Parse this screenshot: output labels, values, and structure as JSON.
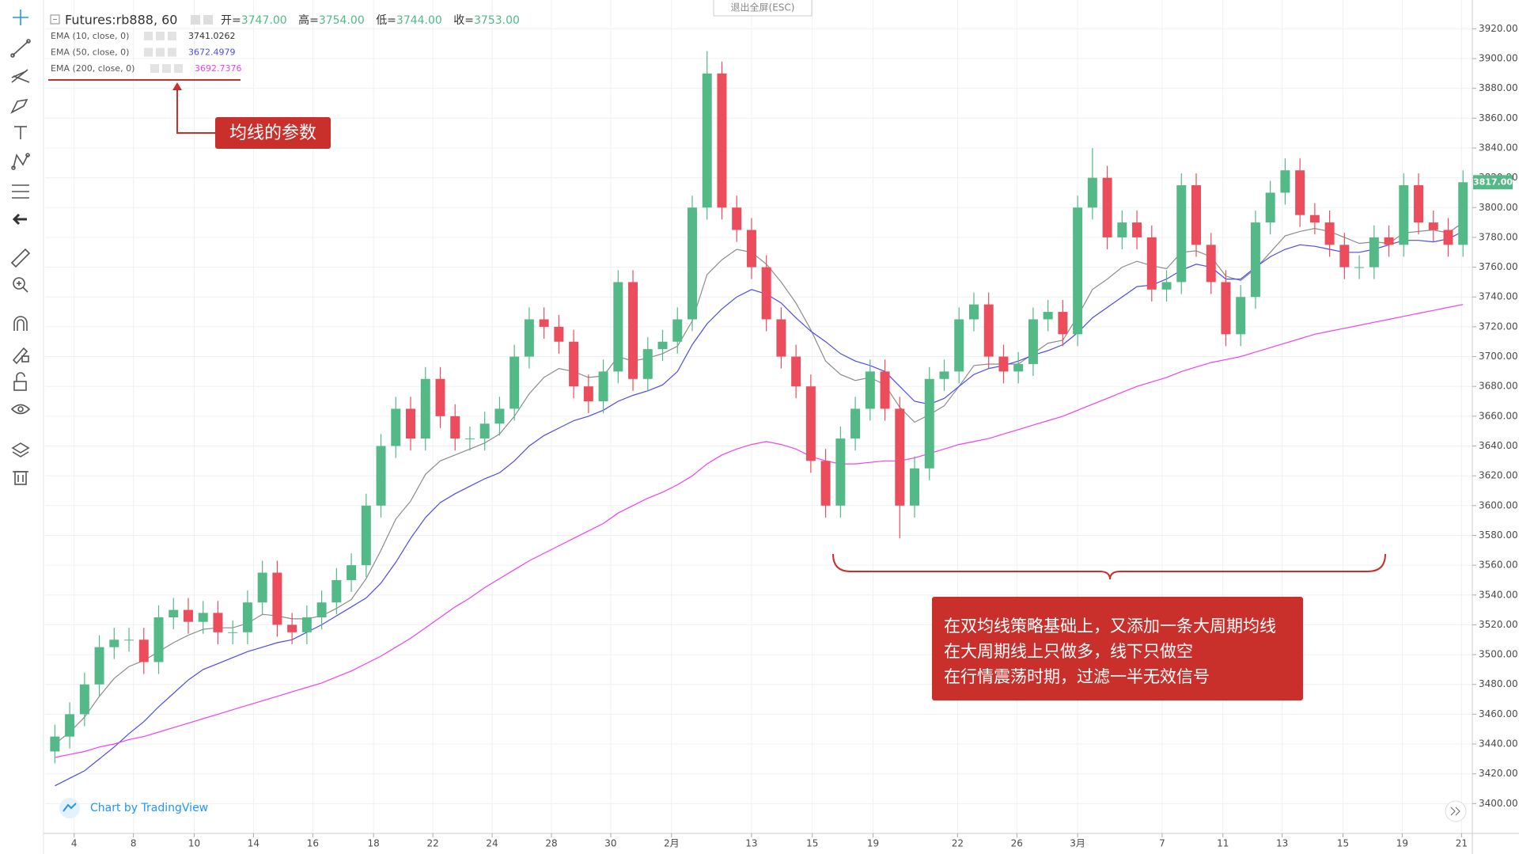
{
  "chart_data": {
    "type": "candlestick",
    "title": "Futures:rb888, 60",
    "ohlc": {
      "open_label": "开=",
      "open": "3747.00",
      "high_label": "高=",
      "high": "3754.00",
      "low_label": "低=",
      "low": "3744.00",
      "close_label": "收=",
      "close": "3753.00"
    },
    "up_color": "#53b987",
    "down_color": "#eb4d5c",
    "candles": {
      "open": [
        3435,
        3445,
        3460,
        3480,
        3505,
        3510,
        3510,
        3495,
        3525,
        3530,
        3522,
        3528,
        3515,
        3515,
        3535,
        3555,
        3520,
        3515,
        3525,
        3535,
        3550,
        3560,
        3600,
        3640,
        3665,
        3645,
        3685,
        3660,
        3645,
        3645,
        3655,
        3665,
        3700,
        3725,
        3720,
        3710,
        3680,
        3670,
        3690,
        3750,
        3685,
        3705,
        3710,
        3725,
        3800,
        3890,
        3800,
        3785,
        3760,
        3725,
        3700,
        3680,
        3630,
        3600,
        3645,
        3665,
        3690,
        3665,
        3600,
        3625,
        3685,
        3690,
        3725,
        3735,
        3700,
        3690,
        3695,
        3725,
        3730,
        3715,
        3800,
        3820,
        3780,
        3790,
        3780,
        3745,
        3750,
        3815,
        3775,
        3750,
        3715,
        3740,
        3790,
        3810,
        3825,
        3795,
        3790,
        3775,
        3760,
        3760,
        3780,
        3775,
        3815,
        3790,
        3785,
        3775
      ],
      "high": [
        3453,
        3468,
        3488,
        3513,
        3518,
        3518,
        3518,
        3533,
        3538,
        3538,
        3536,
        3536,
        3523,
        3543,
        3563,
        3563,
        3528,
        3533,
        3543,
        3558,
        3568,
        3608,
        3648,
        3673,
        3673,
        3693,
        3693,
        3668,
        3653,
        3663,
        3673,
        3708,
        3733,
        3733,
        3728,
        3718,
        3688,
        3698,
        3758,
        3758,
        3713,
        3718,
        3733,
        3808,
        3905,
        3898,
        3808,
        3793,
        3768,
        3733,
        3708,
        3688,
        3638,
        3653,
        3673,
        3698,
        3698,
        3673,
        3633,
        3693,
        3698,
        3733,
        3743,
        3743,
        3708,
        3703,
        3733,
        3738,
        3738,
        3808,
        3840,
        3828,
        3798,
        3798,
        3788,
        3758,
        3823,
        3823,
        3783,
        3758,
        3748,
        3798,
        3818,
        3833,
        3833,
        3803,
        3798,
        3783,
        3768,
        3788,
        3788,
        3823,
        3823,
        3798,
        3793,
        3825
      ],
      "low": [
        3427,
        3437,
        3452,
        3472,
        3497,
        3502,
        3487,
        3487,
        3517,
        3514,
        3514,
        3507,
        3507,
        3507,
        3527,
        3512,
        3507,
        3507,
        3517,
        3527,
        3542,
        3552,
        3592,
        3632,
        3637,
        3637,
        3652,
        3637,
        3637,
        3637,
        3647,
        3657,
        3692,
        3712,
        3702,
        3672,
        3662,
        3662,
        3682,
        3677,
        3677,
        3697,
        3702,
        3717,
        3792,
        3792,
        3777,
        3752,
        3717,
        3692,
        3672,
        3622,
        3592,
        3592,
        3637,
        3657,
        3657,
        3578,
        3592,
        3617,
        3677,
        3682,
        3717,
        3692,
        3682,
        3682,
        3687,
        3717,
        3707,
        3707,
        3792,
        3772,
        3772,
        3772,
        3737,
        3737,
        3742,
        3767,
        3742,
        3707,
        3707,
        3732,
        3782,
        3802,
        3787,
        3782,
        3767,
        3752,
        3752,
        3752,
        3767,
        3767,
        3782,
        3777,
        3767,
        3767
      ],
      "close": [
        3445,
        3460,
        3480,
        3505,
        3510,
        3510,
        3495,
        3525,
        3530,
        3522,
        3528,
        3515,
        3515,
        3535,
        3555,
        3520,
        3515,
        3525,
        3535,
        3550,
        3560,
        3600,
        3640,
        3665,
        3645,
        3685,
        3660,
        3645,
        3645,
        3655,
        3665,
        3700,
        3725,
        3720,
        3710,
        3680,
        3670,
        3690,
        3750,
        3685,
        3705,
        3710,
        3725,
        3800,
        3890,
        3800,
        3785,
        3760,
        3725,
        3700,
        3680,
        3630,
        3600,
        3645,
        3665,
        3690,
        3665,
        3600,
        3625,
        3685,
        3690,
        3725,
        3735,
        3700,
        3690,
        3695,
        3725,
        3730,
        3715,
        3800,
        3820,
        3780,
        3790,
        3780,
        3745,
        3750,
        3815,
        3775,
        3750,
        3715,
        3740,
        3790,
        3810,
        3825,
        3795,
        3790,
        3775,
        3760,
        3760,
        3780,
        3775,
        3815,
        3790,
        3785,
        3775,
        3817
      ]
    },
    "series": [
      {
        "name": "EMA (10, close, 0)",
        "color": "#8c8c8c",
        "legend_value": 3741.0262,
        "values": [
          3440,
          3448,
          3458,
          3472,
          3484,
          3492,
          3496,
          3502,
          3508,
          3513,
          3517,
          3518,
          3518,
          3521,
          3527,
          3526,
          3524,
          3524,
          3526,
          3531,
          3537,
          3551,
          3570,
          3591,
          3603,
          3621,
          3630,
          3634,
          3638,
          3642,
          3648,
          3660,
          3675,
          3686,
          3692,
          3690,
          3686,
          3687,
          3700,
          3697,
          3699,
          3702,
          3707,
          3724,
          3755,
          3765,
          3772,
          3770,
          3762,
          3750,
          3736,
          3718,
          3697,
          3688,
          3684,
          3686,
          3681,
          3666,
          3656,
          3661,
          3667,
          3680,
          3694,
          3695,
          3695,
          3695,
          3702,
          3709,
          3711,
          3727,
          3745,
          3752,
          3760,
          3764,
          3761,
          3759,
          3770,
          3771,
          3767,
          3754,
          3751,
          3759,
          3770,
          3781,
          3784,
          3786,
          3784,
          3780,
          3776,
          3777,
          3776,
          3783,
          3784,
          3785,
          3783,
          3790
        ]
      },
      {
        "name": "EMA (50, close, 0)",
        "color": "#4b4bf0",
        "legend_value": 3672.4979,
        "values": [
          3412,
          3417,
          3422,
          3430,
          3438,
          3447,
          3455,
          3465,
          3474,
          3483,
          3490,
          3494,
          3498,
          3502,
          3505,
          3508,
          3510,
          3515,
          3520,
          3526,
          3532,
          3538,
          3548,
          3562,
          3578,
          3592,
          3602,
          3608,
          3613,
          3618,
          3622,
          3630,
          3640,
          3647,
          3652,
          3657,
          3660,
          3664,
          3670,
          3674,
          3677,
          3681,
          3690,
          3708,
          3722,
          3732,
          3740,
          3745,
          3742,
          3736,
          3726,
          3717,
          3710,
          3702,
          3697,
          3694,
          3690,
          3680,
          3670,
          3668,
          3672,
          3680,
          3688,
          3692,
          3694,
          3697,
          3701,
          3704,
          3708,
          3716,
          3726,
          3733,
          3740,
          3747,
          3748,
          3752,
          3758,
          3762,
          3760,
          3752,
          3752,
          3760,
          3767,
          3772,
          3775,
          3774,
          3772,
          3770,
          3770,
          3772,
          3775,
          3778,
          3778,
          3777,
          3779,
          3784
        ]
      },
      {
        "name": "EMA (200, close, 0)",
        "color": "#f040f0",
        "legend_value": 3692.7376,
        "values": [
          3431,
          3433,
          3435,
          3438,
          3440,
          3443,
          3445,
          3448,
          3451,
          3454,
          3457,
          3460,
          3463,
          3466,
          3469,
          3472,
          3475,
          3478,
          3481,
          3485,
          3489,
          3494,
          3499,
          3505,
          3511,
          3518,
          3525,
          3532,
          3538,
          3545,
          3551,
          3557,
          3563,
          3568,
          3573,
          3578,
          3583,
          3588,
          3595,
          3600,
          3605,
          3609,
          3614,
          3620,
          3628,
          3634,
          3638,
          3641,
          3643,
          3641,
          3638,
          3633,
          3630,
          3628,
          3628,
          3629,
          3630,
          3630,
          3632,
          3635,
          3638,
          3641,
          3643,
          3645,
          3648,
          3651,
          3654,
          3657,
          3660,
          3664,
          3668,
          3672,
          3676,
          3680,
          3683,
          3686,
          3690,
          3693,
          3696,
          3698,
          3700,
          3703,
          3706,
          3709,
          3712,
          3715,
          3717,
          3719,
          3721,
          3723,
          3725,
          3727,
          3729,
          3731,
          3733,
          3735
        ]
      }
    ],
    "last_price": {
      "value": 3817,
      "label": "3817.00"
    },
    "xlim": [
      0,
      96
    ],
    "xticks": [
      {
        "value": 1.8,
        "label": "4"
      },
      {
        "value": 5.8,
        "label": "8"
      },
      {
        "value": 9.9,
        "label": "10"
      },
      {
        "value": 13.9,
        "label": "14"
      },
      {
        "value": 17.9,
        "label": "16"
      },
      {
        "value": 22,
        "label": "18"
      },
      {
        "value": 26,
        "label": "22"
      },
      {
        "value": 30,
        "label": "24"
      },
      {
        "value": 34,
        "label": "28"
      },
      {
        "value": 38,
        "label": "30"
      },
      {
        "value": 42.1,
        "label": "2月"
      },
      {
        "value": 47.5,
        "label": "13"
      },
      {
        "value": 51.6,
        "label": "15"
      },
      {
        "value": 55.7,
        "label": "19"
      },
      {
        "value": 61.4,
        "label": "22"
      },
      {
        "value": 65.4,
        "label": "26"
      },
      {
        "value": 69.5,
        "label": "3月"
      },
      {
        "value": 75.2,
        "label": "7"
      },
      {
        "value": 79.3,
        "label": "11"
      },
      {
        "value": 83.3,
        "label": "13"
      },
      {
        "value": 87.4,
        "label": "15"
      },
      {
        "value": 91.4,
        "label": "19"
      },
      {
        "value": 95.4,
        "label": "21"
      }
    ],
    "ylim": [
      3380,
      3934
    ],
    "yticks": [
      {
        "value": 3400,
        "label": "3400.00"
      },
      {
        "value": 3420,
        "label": "3420.00"
      },
      {
        "value": 3440,
        "label": "3440.00"
      },
      {
        "value": 3460,
        "label": "3460.00"
      },
      {
        "value": 3480,
        "label": "3480.00"
      },
      {
        "value": 3500,
        "label": "3500.00"
      },
      {
        "value": 3520,
        "label": "3520.00"
      },
      {
        "value": 3540,
        "label": "3540.00"
      },
      {
        "value": 3560,
        "label": "3560.00"
      },
      {
        "value": 3580,
        "label": "3580.00"
      },
      {
        "value": 3600,
        "label": "3600.00"
      },
      {
        "value": 3620,
        "label": "3620.00"
      },
      {
        "value": 3640,
        "label": "3640.00"
      },
      {
        "value": 3660,
        "label": "3660.00"
      },
      {
        "value": 3680,
        "label": "3680.00"
      },
      {
        "value": 3700,
        "label": "3700.00"
      },
      {
        "value": 3720,
        "label": "3720.00"
      },
      {
        "value": 3740,
        "label": "3740.00"
      },
      {
        "value": 3760,
        "label": "3760.00"
      },
      {
        "value": 3780,
        "label": "3780.00"
      },
      {
        "value": 3800,
        "label": "3800.00"
      },
      {
        "value": 3820,
        "label": "3820.00"
      },
      {
        "value": 3840,
        "label": "3840.00"
      },
      {
        "value": 3860,
        "label": "3860.00"
      },
      {
        "value": 3880,
        "label": "3880.00"
      },
      {
        "value": 3900,
        "label": "3900.00"
      },
      {
        "value": 3920,
        "label": "3920.00"
      }
    ],
    "grid": true,
    "annotations": {
      "params": "均线的参数",
      "strategy": [
        "在双均线策略基础上，又添加一条大周期均线",
        "在大周期线上只做多，线下只做空",
        "在行情震荡时期，过滤一半无效信号"
      ]
    }
  },
  "ui": {
    "exit_fullscreen": "退出全屏(ESC)",
    "watermark": "Chart by TradingView"
  }
}
